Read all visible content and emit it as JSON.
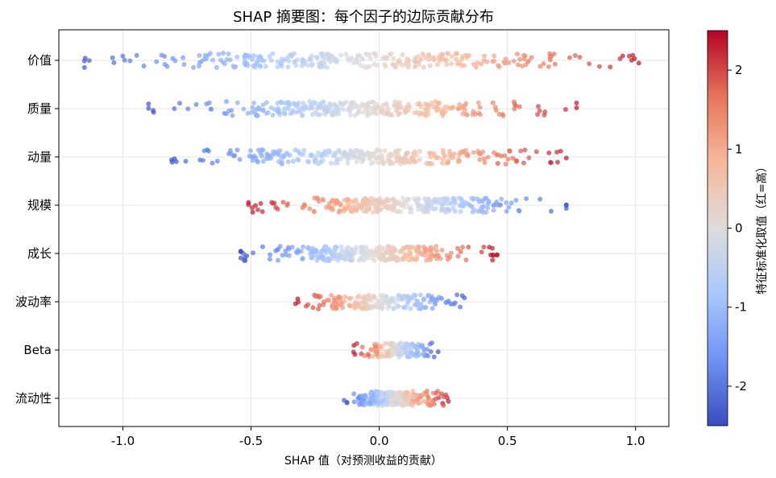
{
  "chart_data": {
    "type": "scatter",
    "title": "SHAP 摘要图：每个因子的边际贡献分布",
    "xlabel": "SHAP 值（对预测收益的贡献）",
    "ylabel": "",
    "xlim": [
      -1.25,
      1.13
    ],
    "x_ticks": [
      -1.0,
      -0.5,
      0.0,
      0.5,
      1.0
    ],
    "x_tick_labels": [
      "-1.0",
      "-0.5",
      "0.0",
      "0.5",
      "1.0"
    ],
    "grid": true,
    "categories": [
      "价值",
      "质量",
      "动量",
      "规模",
      "成长",
      "波动率",
      "Beta",
      "流动性"
    ],
    "series": [
      {
        "feature": "价值",
        "shap_min": -1.15,
        "shap_max": 1.02,
        "low_side": "negative",
        "n_points": 300
      },
      {
        "feature": "质量",
        "shap_min": -0.9,
        "shap_max": 0.77,
        "low_side": "negative",
        "n_points": 300
      },
      {
        "feature": "动量",
        "shap_min": -0.81,
        "shap_max": 0.73,
        "low_side": "negative",
        "n_points": 300
      },
      {
        "feature": "规模",
        "shap_min": -0.51,
        "shap_max": 0.73,
        "low_side": "positive",
        "n_points": 300
      },
      {
        "feature": "成长",
        "shap_min": -0.54,
        "shap_max": 0.46,
        "low_side": "negative",
        "n_points": 300
      },
      {
        "feature": "波动率",
        "shap_min": -0.33,
        "shap_max": 0.35,
        "low_side": "positive",
        "n_points": 200
      },
      {
        "feature": "Beta",
        "shap_min": -0.1,
        "shap_max": 0.23,
        "low_side": "positive",
        "n_points": 150
      },
      {
        "feature": "流动性",
        "shap_min": -0.14,
        "shap_max": 0.27,
        "low_side": "negative",
        "n_points": 250
      }
    ],
    "colorbar": {
      "label": "特征标准化取值（红=高）",
      "range": [
        -2.5,
        2.5
      ],
      "ticks": [
        -2,
        -1,
        0,
        1,
        2
      ],
      "tick_labels": [
        "-2",
        "-1",
        "0",
        "1",
        "2"
      ],
      "colormap": "coolwarm",
      "colors": [
        "#3b4cc0",
        "#6f92f3",
        "#aac7fd",
        "#dddcdc",
        "#f7b89c",
        "#e7745b",
        "#b40426"
      ]
    }
  }
}
